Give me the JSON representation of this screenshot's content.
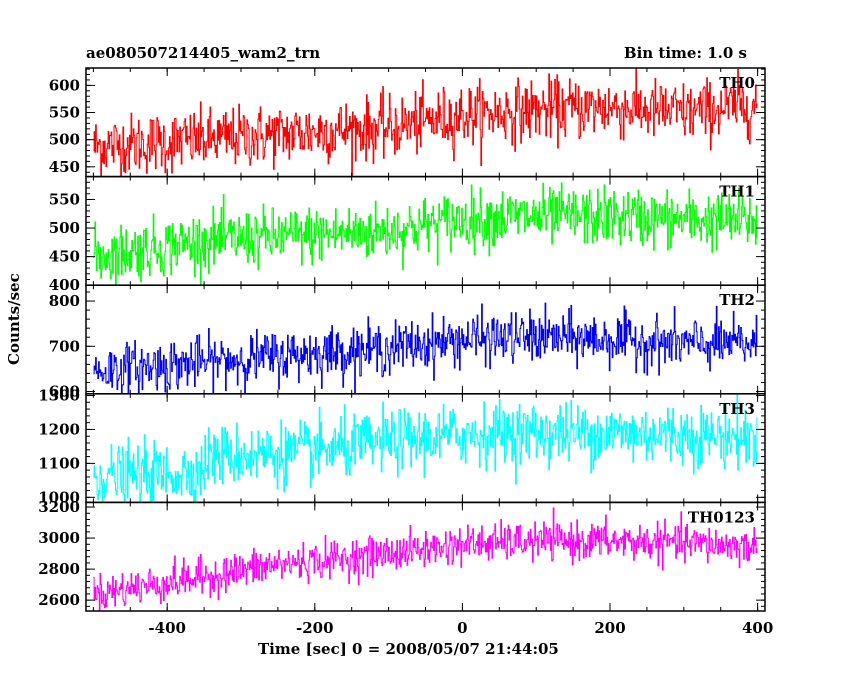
{
  "header": {
    "title": "ae080507214405_wam2_trn",
    "bin_time": "Bin time: 1.0 s"
  },
  "chart_data": {
    "type": "line",
    "xlabel": "Time [sec] 0 = 2008/05/07 21:44:05",
    "ylabel": "Counts/sec",
    "xlim": [
      -510,
      410
    ],
    "x_ticks": [
      -400,
      -200,
      0,
      200,
      400
    ],
    "x_range": [
      -500,
      400
    ],
    "bin_seconds": 1.0,
    "grid": false,
    "panels": [
      {
        "name": "TH0",
        "color": "#ff0000",
        "ylim": [
          432,
          632
        ],
        "y_ticks": [
          450,
          500,
          550,
          600
        ],
        "trend": [
          [
            -500,
            488
          ],
          [
            -350,
            500
          ],
          [
            -200,
            515
          ],
          [
            -100,
            522
          ],
          [
            0,
            545
          ],
          [
            100,
            555
          ],
          [
            200,
            560
          ],
          [
            300,
            550
          ],
          [
            400,
            565
          ]
        ],
        "noise_sd": 28
      },
      {
        "name": "TH1",
        "color": "#00ff00",
        "ylim": [
          400,
          590
        ],
        "y_ticks": [
          400,
          450,
          500,
          550
        ],
        "trend": [
          [
            -500,
            450
          ],
          [
            -350,
            478
          ],
          [
            -250,
            485
          ],
          [
            -100,
            495
          ],
          [
            0,
            515
          ],
          [
            100,
            520
          ],
          [
            200,
            520
          ],
          [
            300,
            515
          ],
          [
            400,
            512
          ]
        ],
        "noise_sd": 25
      },
      {
        "name": "TH2",
        "color": "#0000ff",
        "ylim": [
          595,
          835
        ],
        "y_ticks": [
          600,
          700,
          800
        ],
        "trend": [
          [
            -500,
            645
          ],
          [
            -350,
            665
          ],
          [
            -200,
            685
          ],
          [
            -100,
            695
          ],
          [
            0,
            715
          ],
          [
            100,
            720
          ],
          [
            200,
            715
          ],
          [
            300,
            705
          ],
          [
            400,
            705
          ]
        ],
        "noise_sd": 28
      },
      {
        "name": "TH3",
        "color": "#00ffff",
        "ylim": [
          985,
          1305
        ],
        "y_ticks": [
          1000,
          1100,
          1200,
          1300
        ],
        "trend": [
          [
            -500,
            1060
          ],
          [
            -355,
            1075
          ],
          [
            -345,
            1120
          ],
          [
            -200,
            1135
          ],
          [
            -100,
            1165
          ],
          [
            0,
            1185
          ],
          [
            100,
            1190
          ],
          [
            200,
            1190
          ],
          [
            300,
            1185
          ],
          [
            400,
            1175
          ]
        ],
        "noise_sd": 45
      },
      {
        "name": "TH0123",
        "color": "#ff00ff",
        "ylim": [
          2530,
          3230
        ],
        "y_ticks": [
          2600,
          2800,
          3000,
          3200
        ],
        "trend": [
          [
            -500,
            2640
          ],
          [
            -350,
            2750
          ],
          [
            -250,
            2830
          ],
          [
            -100,
            2900
          ],
          [
            0,
            2960
          ],
          [
            100,
            2980
          ],
          [
            200,
            2980
          ],
          [
            300,
            2970
          ],
          [
            400,
            2940
          ]
        ],
        "noise_sd": 60
      }
    ]
  }
}
